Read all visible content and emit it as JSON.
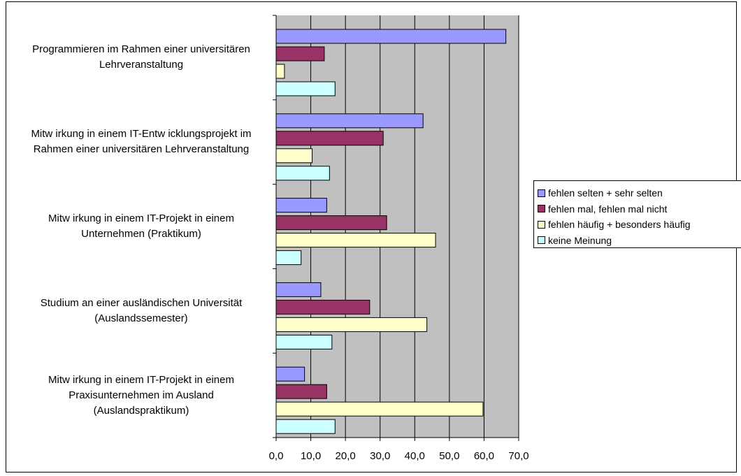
{
  "chart_data": {
    "type": "bar",
    "orientation": "horizontal",
    "categories": [
      "Programmieren im Rahmen einer universitären\nLehrveranstaltung",
      "Mitw irkung in einem IT-Entw icklungsprojekt im\nRahmen einer universitären Lehrveranstaltung",
      "Mitw irkung in einem IT-Projekt in einem\nUnternehmen (Praktikum)",
      "Studium an einer ausländischen Universität\n(Auslandssemester)",
      "Mitw irkung in einem IT-Projekt in einem\nPraxisunternehmen im Ausland\n(Auslandspraktikum)"
    ],
    "series": [
      {
        "name": "fehlen selten + sehr selten",
        "color": "#9999ff",
        "values": [
          66.3,
          42.4,
          14.6,
          12.9,
          8.2
        ]
      },
      {
        "name": "fehlen mal, fehlen mal nicht",
        "color": "#993366",
        "values": [
          13.9,
          30.9,
          31.9,
          27.0,
          14.6
        ]
      },
      {
        "name": "fehlen häufig + besonders häufig",
        "color": "#ffffcc",
        "values": [
          2.4,
          10.4,
          46.0,
          43.5,
          59.7
        ]
      },
      {
        "name": "keine Meinung",
        "color": "#ccffff",
        "values": [
          17.0,
          15.4,
          7.2,
          16.1,
          17.0
        ]
      }
    ],
    "xticks": [
      "0,0",
      "10,0",
      "20,0",
      "30,0",
      "40,0",
      "50,0",
      "60,0",
      "70,0"
    ],
    "xlim": [
      0,
      70
    ],
    "grid": true,
    "plot_background": "#c0c0c0",
    "legend_position": "right",
    "title": "",
    "xlabel": "",
    "ylabel": ""
  }
}
